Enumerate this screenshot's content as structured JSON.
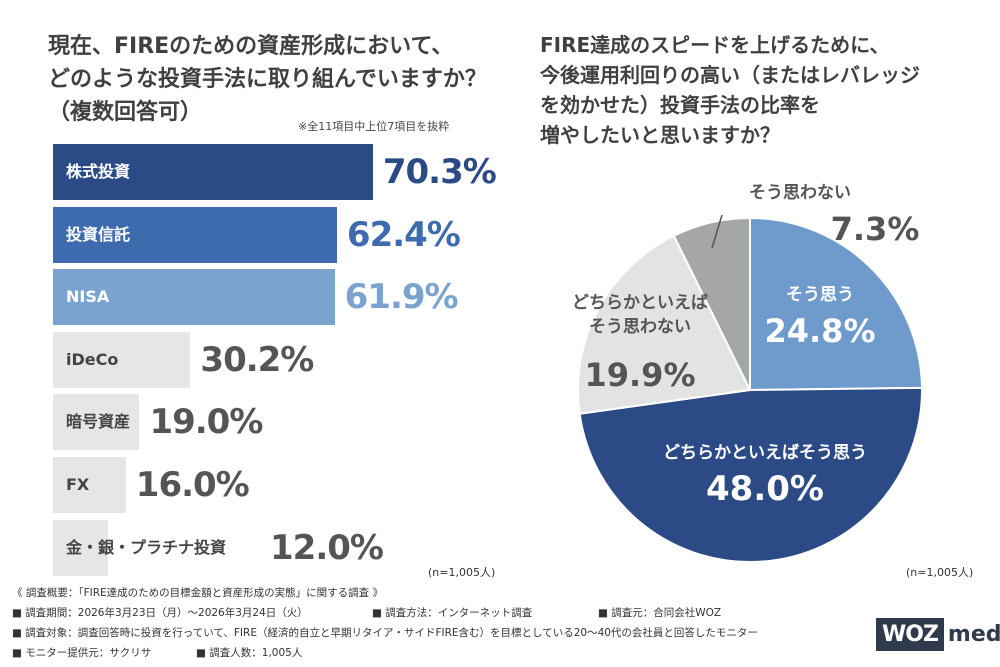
{
  "left_title_lines": [
    "現在、FIREのための資産形成において、",
    "どのような投資手法に取り組んでいますか？",
    "（複数回答可）"
  ],
  "left_note": "※全11項目中上位7項目を抜粋",
  "right_title_lines": [
    "FIRE達成のスピードを上げるために、",
    "今後運用利回りの高い（またはレバレッジ",
    "を効かせた）投資手法の比率を",
    "増やしたいと思いますか？"
  ],
  "n_left": "(n=1,005人)",
  "n_right": "(n=1,005人)",
  "chart_data": [
    {
      "type": "bar",
      "orientation": "horizontal",
      "categories": [
        "株式投資",
        "投資信託",
        "NISA",
        "iDeCo",
        "暗号資産",
        "FX",
        "金・銀・プラチナ投資"
      ],
      "values": [
        70.3,
        62.4,
        61.9,
        30.2,
        19.0,
        16.0,
        12.0
      ],
      "value_labels": [
        "70.3%",
        "62.4%",
        "61.9%",
        "30.2%",
        "19.0%",
        "16.0%",
        "12.0%"
      ],
      "colors": [
        "#2c4a86",
        "#3e6bad",
        "#7ba3cf",
        "#e6e6e6",
        "#e6e6e6",
        "#e6e6e6",
        "#e6e6e6"
      ],
      "value_colors": [
        "#2c4a86",
        "#3e6bad",
        "#7ba3cf",
        "#555555",
        "#555555",
        "#555555",
        "#555555"
      ],
      "label_colors": [
        "#ffffff",
        "#ffffff",
        "#ffffff",
        "#444444",
        "#444444",
        "#444444",
        "#444444"
      ]
    },
    {
      "type": "pie",
      "slices": [
        {
          "label": "そう思う",
          "value": 24.8,
          "value_label": "24.8%",
          "color": "#6f9bcc",
          "text_color": "#ffffff"
        },
        {
          "label": "どちらかといえばそう思う",
          "value": 48.0,
          "value_label": "48.0%",
          "color": "#2c4a86",
          "text_color": "#ffffff"
        },
        {
          "label": "どちらかといえば\nそう思わない",
          "value": 19.9,
          "value_label": "19.9%",
          "color": "#e3e3e3",
          "text_color": "#555555"
        },
        {
          "label": "そう思わない",
          "value": 7.3,
          "value_label": "7.3%",
          "color": "#a6a6a6",
          "text_color": "#555555"
        }
      ]
    }
  ],
  "footer": {
    "line1": "《 調査概要：「FIRE達成のための目標金額と資産形成の実態」に関する調査 》",
    "period": "■ 調査期間：2026年3月23日（月）～2026年3月24日（火）",
    "method": "■ 調査方法：インターネット調査",
    "source": "■ 調査元：合同会社WOZ",
    "target": "■ 調査対象：調査回答時に投資を行っていて、FIRE（経済的自立と早期リタイア・サイドFIRE含む）を目標としている20〜40代の会社員と回答したモニター",
    "provider": "■ モニター提供元：サクリサ",
    "count": "■ 調査人数：1,005人"
  },
  "logo": {
    "box": "WOZ",
    "text": "media"
  }
}
